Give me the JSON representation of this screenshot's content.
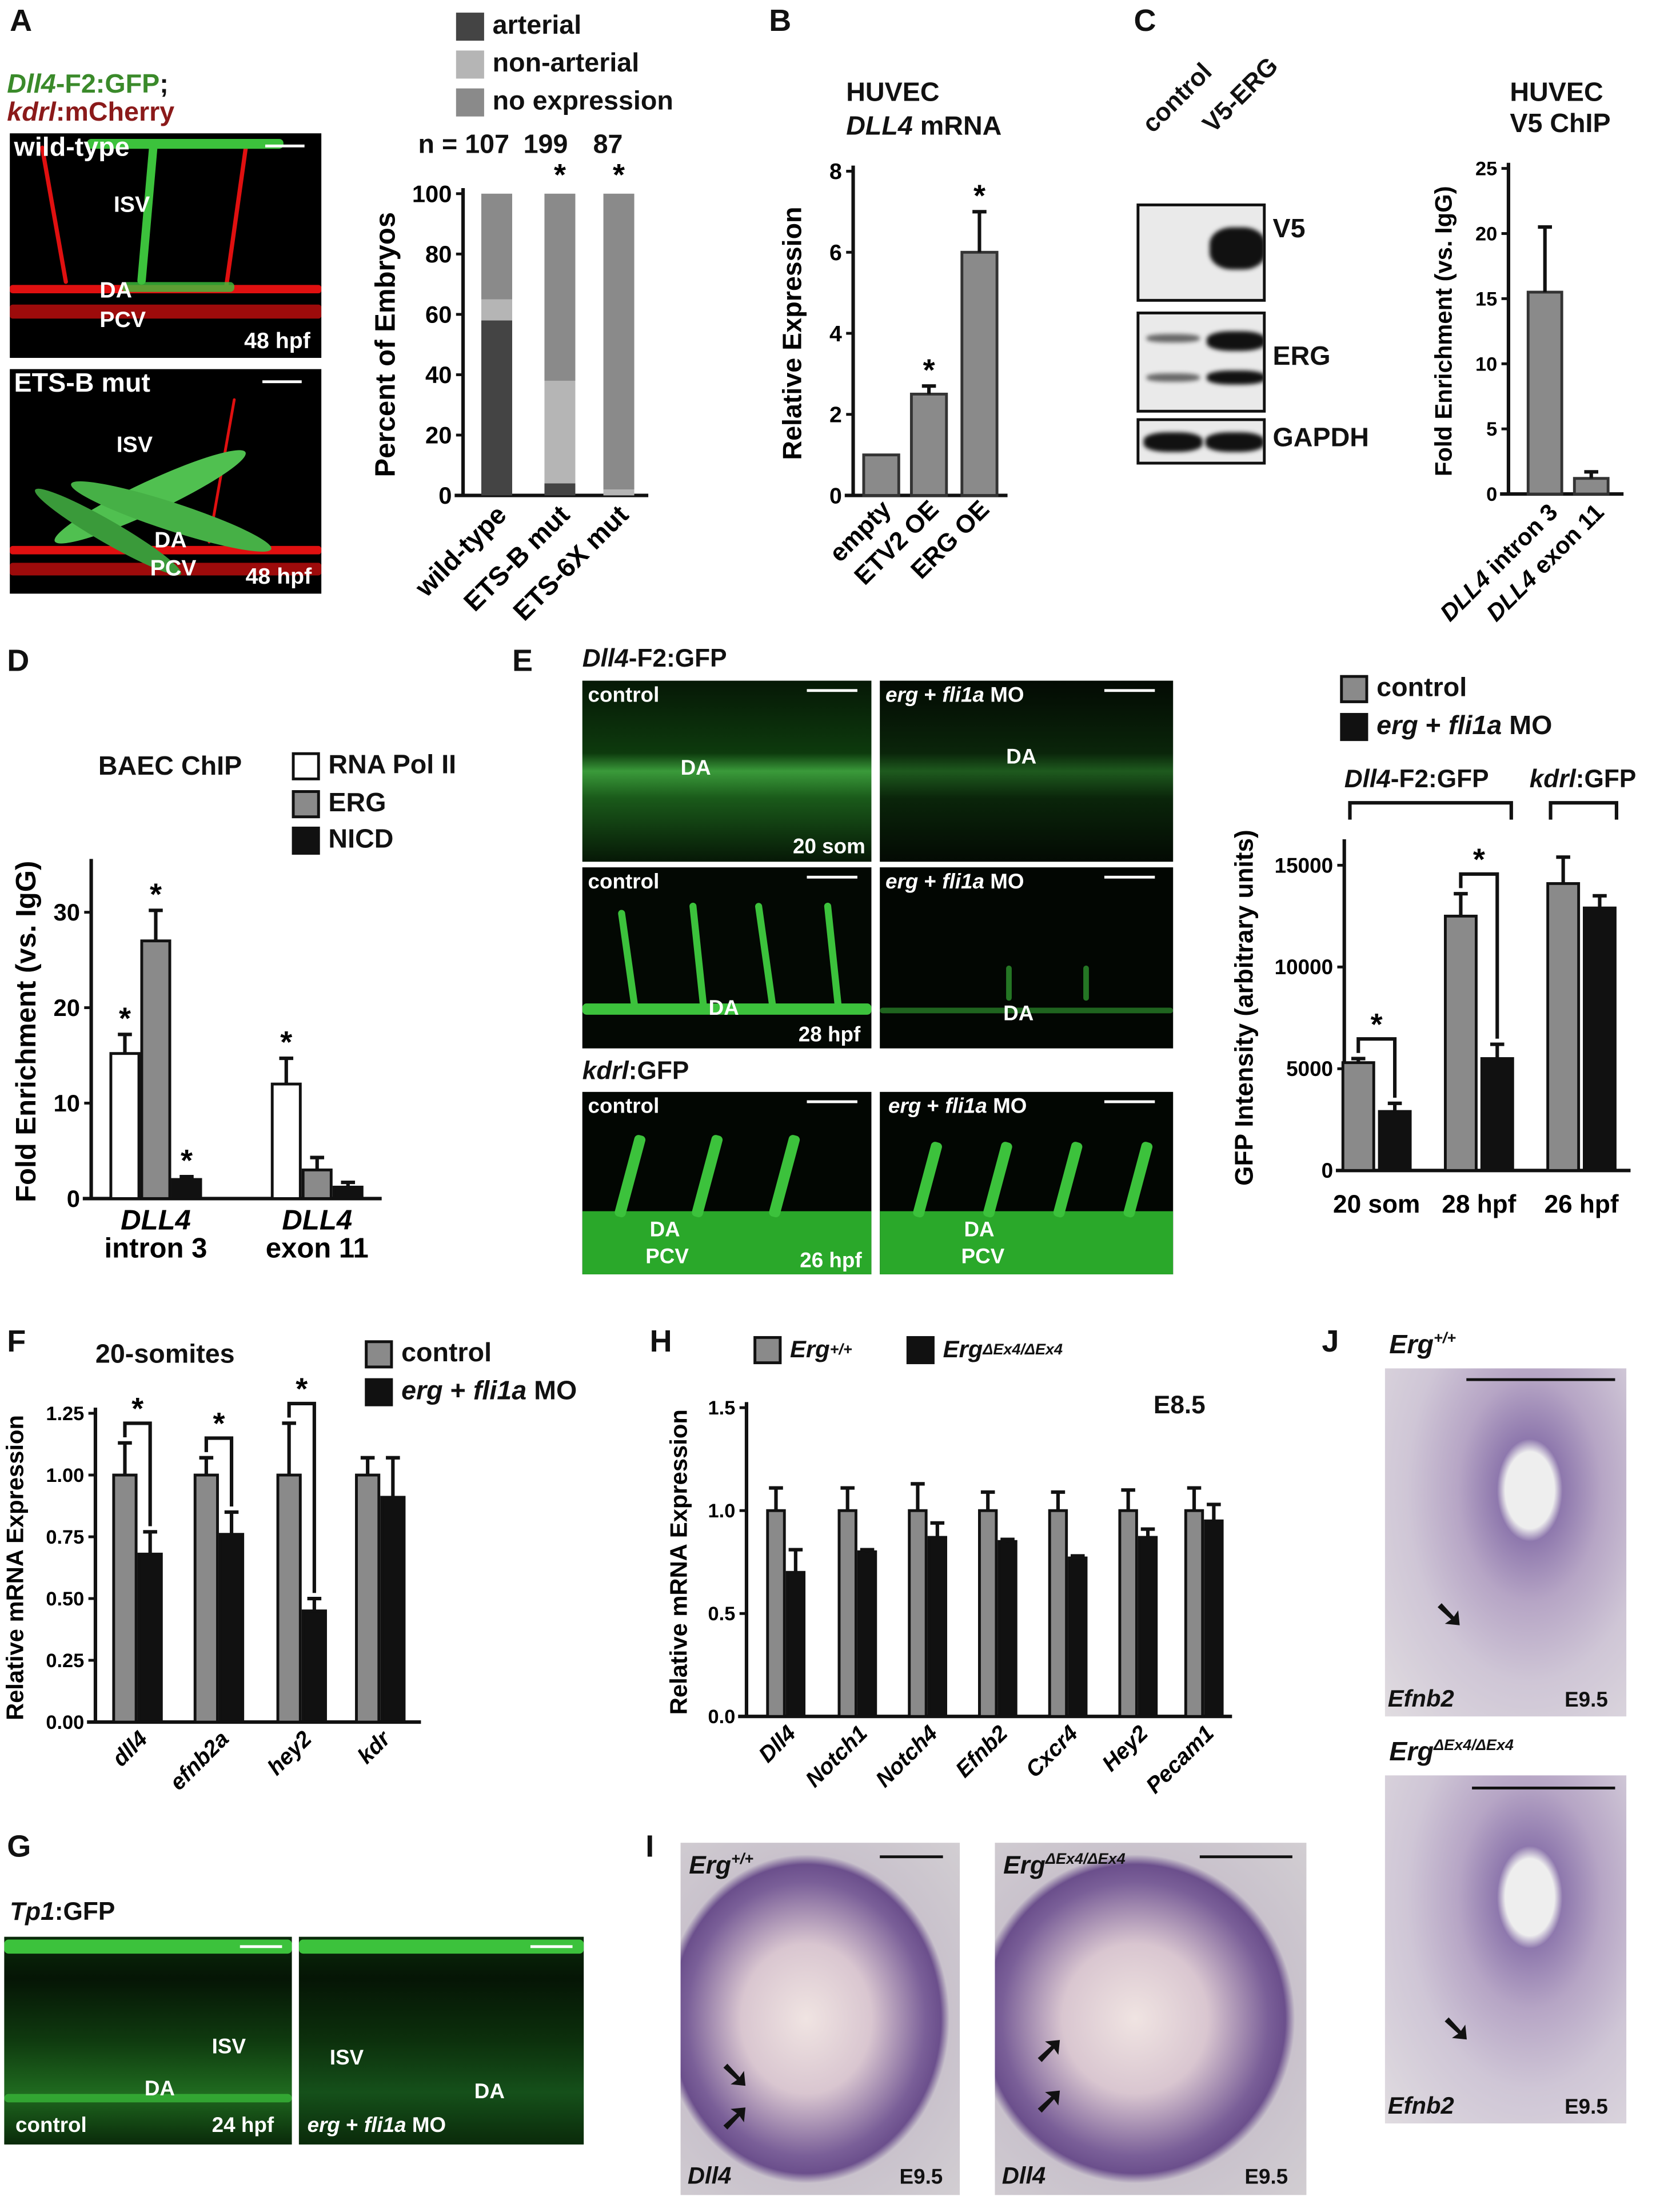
{
  "panel_letters": {
    "A": "A",
    "B": "B",
    "C": "C",
    "D": "D",
    "E": "E",
    "F": "F",
    "G": "G",
    "H": "H",
    "I": "I",
    "J": "J"
  },
  "panel_A": {
    "caption1_gene": "Dll4",
    "caption1_rest": "-F2:GFP",
    "caption1_sep": ";",
    "caption2_gene": "kdrl",
    "caption2_rest": ":mCherry",
    "caption1_color": "#3a8a2a",
    "caption2_color": "#8b1a1a",
    "images": [
      {
        "title": "wild-type",
        "isv": "ISV",
        "da": "DA",
        "pcv": "PCV",
        "stage": "48 hpf"
      },
      {
        "title": "ETS-B mut",
        "isv": "ISV",
        "da": "DA",
        "pcv": "PCV",
        "stage": "48 hpf"
      }
    ],
    "legend": [
      "arterial",
      "non-arterial",
      "no expression"
    ],
    "n_prefix": "n = ",
    "n_values": [
      "107",
      "199",
      "87"
    ]
  },
  "panel_B": {
    "title1": "HUVEC",
    "title2_gene": "DLL4",
    "title2_rest": " mRNA"
  },
  "panel_C": {
    "lanes": [
      "control",
      "V5-ERG"
    ],
    "blots": [
      "V5",
      "ERG",
      "GAPDH"
    ],
    "chip_title1": "HUVEC",
    "chip_title2": "V5 ChIP"
  },
  "panel_D": {
    "title": "BAEC ChIP",
    "legend": [
      "RNA Pol II",
      "ERG",
      "NICD"
    ]
  },
  "panel_E": {
    "row_title1_gene": "Dll4",
    "row_title1_rest": "-F2:GFP",
    "row_title2_gene": "kdrl",
    "row_title2_rest": ":GFP",
    "images": [
      {
        "condition": "control",
        "label": "DA",
        "stage": "20 som"
      },
      {
        "condition_gene1": "erg",
        "condition_plus": " + ",
        "condition_gene2": "fli1a",
        "condition_rest": " MO",
        "label": "DA"
      },
      {
        "condition": "control",
        "label": "DA",
        "stage": "28 hpf"
      },
      {
        "condition_gene1": "erg",
        "condition_plus": " + ",
        "condition_gene2": "fli1a",
        "condition_rest": " MO",
        "label": "DA"
      },
      {
        "condition": "control",
        "label": "DA",
        "label2": "PCV",
        "stage": "26 hpf"
      },
      {
        "condition_gene1": "erg",
        "condition_plus": " + ",
        "condition_gene2": "fli1a",
        "condition_rest": " MO",
        "label": "DA",
        "label2": "PCV"
      }
    ],
    "legend_control": "control",
    "legend_mo_gene1": "erg",
    "legend_mo_plus": " + ",
    "legend_mo_gene2": "fli1a",
    "legend_mo_rest": " MO",
    "group1_gene": "Dll4",
    "group1_rest": "-F2:GFP",
    "group2_gene": "kdrl",
    "group2_rest": ":GFP"
  },
  "panel_F": {
    "title": "20-somites",
    "legend_control": "control",
    "legend_mo_gene1": "erg",
    "legend_mo_plus": " + ",
    "legend_mo_gene2": "fli1a",
    "legend_mo_rest": " MO"
  },
  "panel_G": {
    "title_gene": "Tp1",
    "title_rest": ":GFP",
    "images": [
      {
        "condition": "control",
        "isv": "ISV",
        "da": "DA",
        "stage": "24 hpf"
      },
      {
        "condition_gene1": "erg",
        "condition_plus": " + ",
        "condition_gene2": "fli1a",
        "condition_rest": " MO",
        "isv": "ISV",
        "da": "DA"
      }
    ]
  },
  "panel_H": {
    "legend1_base": "Erg",
    "legend1_sup": "+/+",
    "legend2_base": "Erg",
    "legend2_sup": "ΔEx4/ΔEx4",
    "annotation": "E8.5"
  },
  "panel_I": {
    "images": [
      {
        "genotype_base": "Erg",
        "genotype_sup": "+/+",
        "gene": "Dll4",
        "stage": "E9.5",
        "arrow_icon": "arrow-icon"
      },
      {
        "genotype_base": "Erg",
        "genotype_sup": "ΔEx4/ΔEx4",
        "gene": "Dll4",
        "stage": "E9.5",
        "arrow_icon": "arrow-icon"
      }
    ]
  },
  "panel_J": {
    "images": [
      {
        "genotype_base": "Erg",
        "genotype_sup": "+/+",
        "gene": "Efnb2",
        "stage": "E9.5"
      },
      {
        "genotype_base": "Erg",
        "genotype_sup": "ΔEx4/ΔEx4",
        "gene": "Efnb2",
        "stage": "E9.5"
      }
    ]
  },
  "chart_data": [
    {
      "panel": "A",
      "type": "bar",
      "stacked": true,
      "categories": [
        "wild-type",
        "ETS-B mut",
        "ETS-6X mut"
      ],
      "series": [
        {
          "name": "arterial",
          "values": [
            58,
            4,
            0
          ],
          "color": "#444444"
        },
        {
          "name": "non-arterial",
          "values": [
            7,
            34,
            2
          ],
          "color": "#b5b5b5"
        },
        {
          "name": "no expression",
          "values": [
            35,
            62,
            98
          ],
          "color": "#8a8a8a"
        }
      ],
      "ylabel": "Percent of Embryos",
      "ylim": [
        0,
        100
      ],
      "yticks": [
        "0",
        "20",
        "40",
        "60",
        "80",
        "100"
      ],
      "significance": {
        "style": "above",
        "marker": "*",
        "categories": [
          1,
          2
        ]
      }
    },
    {
      "panel": "B",
      "type": "bar",
      "categories": [
        "empty",
        "ETV2 OE",
        "ERG OE"
      ],
      "series": [
        {
          "values": [
            1,
            2.5,
            6
          ],
          "errors": [
            0,
            0.2,
            1.0
          ],
          "color": "#8a8a8a"
        }
      ],
      "ylabel": "Relative Expression",
      "ylim": [
        0,
        8
      ],
      "yticks": [
        "0",
        "2",
        "4",
        "6",
        "8"
      ],
      "significance": {
        "style": "bar",
        "marker": "*",
        "categories": [
          1,
          2
        ]
      }
    },
    {
      "panel": "C",
      "type": "bar",
      "categories": [
        [
          "DLL4",
          "intron 3"
        ],
        [
          "DLL4",
          "exon 11"
        ]
      ],
      "series": [
        {
          "values": [
            15.5,
            1.2
          ],
          "errors": [
            5.0,
            0.5
          ],
          "color": "#8a8a8a"
        }
      ],
      "ylabel": "Fold Enrichment (vs. IgG)",
      "ylim": [
        0,
        25
      ],
      "yticks": [
        "0",
        "5",
        "10",
        "15",
        "20",
        "25"
      ]
    },
    {
      "panel": "D",
      "type": "bar",
      "categories": [
        [
          "DLL4",
          "intron 3"
        ],
        [
          "DLL4",
          "exon 11"
        ]
      ],
      "series": [
        {
          "name": "RNA Pol II",
          "values": [
            15.2,
            12.0
          ],
          "errors": [
            2.0,
            2.7
          ],
          "color": "#ffffff"
        },
        {
          "name": "ERG",
          "values": [
            27.0,
            3.0
          ],
          "errors": [
            3.2,
            1.3
          ],
          "color": "#8a8a8a"
        },
        {
          "name": "NICD",
          "values": [
            2.0,
            1.2
          ],
          "errors": [
            0.3,
            0.5
          ],
          "color": "#111111"
        }
      ],
      "ylabel": "Fold Enrichment (vs. IgG)",
      "ylim": [
        0,
        35
      ],
      "yticks": [
        "0",
        "10",
        "20",
        "30"
      ],
      "ytick_values": [
        0,
        10,
        20,
        30
      ],
      "significance": {
        "style": "bar",
        "marker": "*",
        "bars": [
          [
            0,
            0
          ],
          [
            0,
            1
          ],
          [
            0,
            2
          ],
          [
            1,
            0
          ]
        ]
      }
    },
    {
      "panel": "E",
      "type": "bar",
      "categories": [
        "20 som",
        "28 hpf",
        "26 hpf"
      ],
      "series": [
        {
          "name": "control",
          "values": [
            5300,
            12500,
            14100
          ],
          "errors": [
            200,
            1100,
            1300
          ],
          "color": "#8a8a8a"
        },
        {
          "name": "erg + fli1a MO",
          "values": [
            2900,
            5500,
            12900
          ],
          "errors": [
            400,
            700,
            600
          ],
          "color": "#111111"
        }
      ],
      "ylabel": "GFP Intensity (arbitrary units)",
      "ylim": [
        0,
        16000
      ],
      "yticks": [
        "0",
        "5000",
        "10000",
        "15000"
      ],
      "ytick_values": [
        0,
        5000,
        10000,
        15000
      ],
      "significance": {
        "style": "bracket",
        "marker": "*",
        "categories": [
          0,
          1
        ]
      }
    },
    {
      "panel": "F",
      "type": "bar",
      "categories": [
        "dll4",
        "efnb2a",
        "hey2",
        "kdr"
      ],
      "series": [
        {
          "name": "control",
          "values": [
            1.0,
            1.0,
            1.0,
            1.0
          ],
          "errors": [
            0.13,
            0.07,
            0.21,
            0.07
          ],
          "color": "#8a8a8a"
        },
        {
          "name": "erg + fli1a MO",
          "values": [
            0.68,
            0.76,
            0.45,
            0.91
          ],
          "errors": [
            0.09,
            0.09,
            0.05,
            0.16
          ],
          "color": "#111111"
        }
      ],
      "ylabel": "Relative mRNA Expression",
      "ylim": [
        0,
        1.25
      ],
      "yticks": [
        "0.00",
        "0.25",
        "0.50",
        "0.75",
        "1.00",
        "1.25"
      ],
      "significance": {
        "style": "bracket",
        "marker": "*",
        "categories": [
          0,
          1,
          2
        ]
      }
    },
    {
      "panel": "H",
      "type": "bar",
      "categories": [
        "Dll4",
        "Notch1",
        "Notch4",
        "Efnb2",
        "Cxcr4",
        "Hey2",
        "Pecam1"
      ],
      "series": [
        {
          "name": "Erg+/+",
          "values": [
            1.0,
            1.0,
            1.0,
            1.0,
            1.0,
            1.0,
            1.0
          ],
          "errors": [
            0.11,
            0.11,
            0.13,
            0.09,
            0.09,
            0.1,
            0.11
          ],
          "color": "#8a8a8a"
        },
        {
          "name": "ErgΔEx4/ΔEx4",
          "values": [
            0.7,
            0.8,
            0.87,
            0.85,
            0.77,
            0.87,
            0.95
          ],
          "errors": [
            0.11,
            0.01,
            0.07,
            0.01,
            0.01,
            0.04,
            0.08
          ],
          "color": "#111111"
        }
      ],
      "ylabel": "Relative mRNA Expression",
      "ylim": [
        0,
        1.5
      ],
      "yticks": [
        "0.0",
        "0.5",
        "1.0",
        "1.5"
      ],
      "ytick_values": [
        0,
        0.5,
        1.0,
        1.5
      ]
    }
  ]
}
